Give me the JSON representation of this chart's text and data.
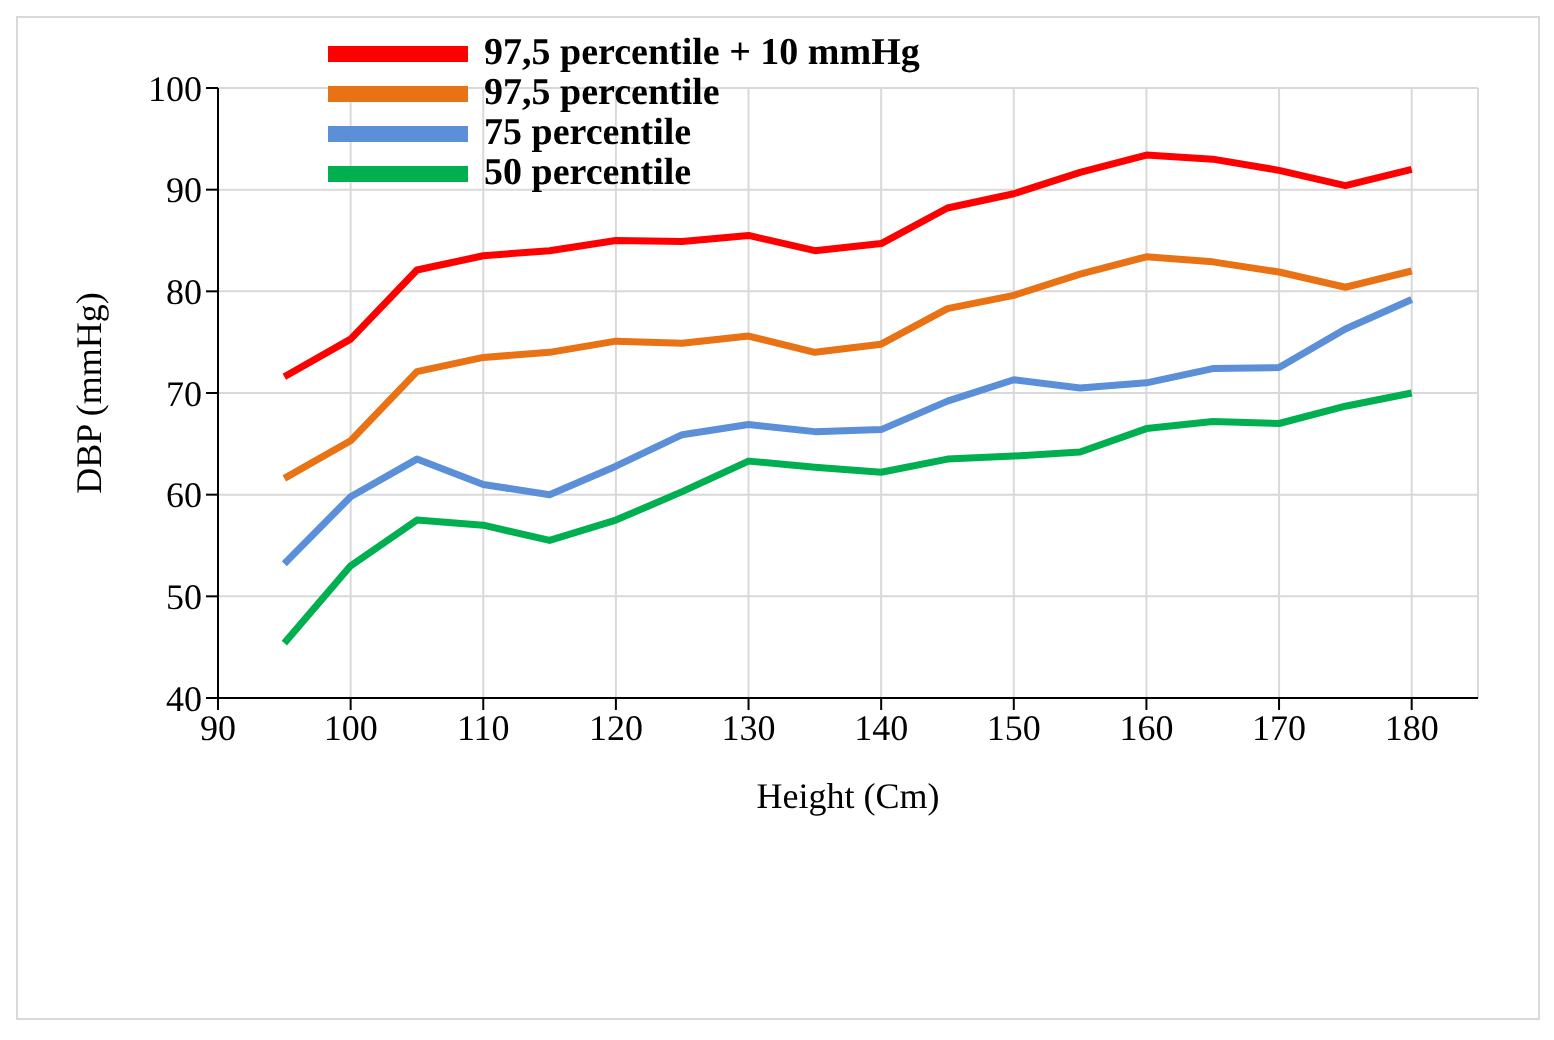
{
  "chart_data": {
    "type": "line",
    "xlabel": "Height (Cm)",
    "ylabel": "DBP (mmHg)",
    "x": [
      95,
      100,
      105,
      110,
      115,
      120,
      125,
      130,
      135,
      140,
      145,
      150,
      155,
      160,
      165,
      170,
      175,
      180
    ],
    "series": [
      {
        "name": "97,5 percentile + 10 mmHg",
        "color": "#ff0000",
        "values": [
          71.6,
          75.3,
          82.1,
          83.5,
          84,
          85,
          84.9,
          85.5,
          84,
          84.7,
          88.2,
          89.6,
          91.7,
          93.4,
          93,
          91.9,
          90.4,
          92
        ]
      },
      {
        "name": "97,5 percentile",
        "color": "#e97214",
        "values": [
          61.6,
          65.3,
          72.1,
          73.5,
          74,
          75.1,
          74.9,
          75.6,
          74,
          74.8,
          78.3,
          79.6,
          81.7,
          83.4,
          82.9,
          81.9,
          80.4,
          82
        ]
      },
      {
        "name": "75 percentile",
        "color": "#5b8fd8",
        "values": [
          53.2,
          59.8,
          63.5,
          61,
          60,
          62.8,
          65.9,
          66.9,
          66.2,
          66.4,
          69.2,
          71.3,
          70.5,
          71,
          72.4,
          72.5,
          76.3,
          79.2
        ]
      },
      {
        "name": "50 percentile",
        "color": "#00b050",
        "values": [
          45.4,
          53,
          57.5,
          57,
          55.5,
          57.5,
          60.3,
          63.3,
          62.7,
          62.2,
          63.5,
          63.8,
          64.2,
          66.5,
          67.2,
          67,
          68.7,
          70
        ]
      }
    ],
    "xlim": [
      90,
      185
    ],
    "xticks": [
      90,
      100,
      110,
      120,
      130,
      140,
      150,
      160,
      170,
      180
    ],
    "ylim": [
      40,
      100
    ],
    "yticks": [
      40,
      50,
      60,
      70,
      80,
      90,
      100
    ],
    "grid": true,
    "legend": "top left",
    "marker": "none",
    "line_style": "solid"
  }
}
